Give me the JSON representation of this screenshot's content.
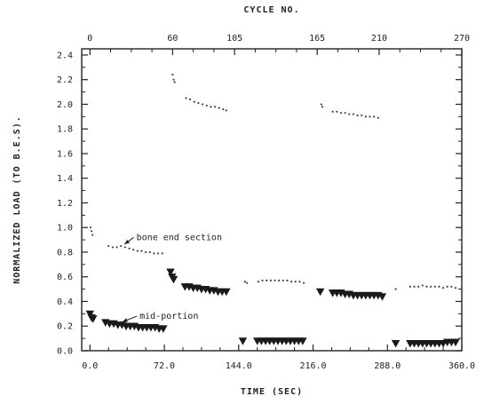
{
  "chart_data": {
    "type": "scatter",
    "title": "",
    "xlabel": "TIME (SEC)",
    "ylabel": "NORMALIZED LOAD (TO B.E.S).",
    "x2label": "CYCLE NO.",
    "xlim": [
      -8,
      360
    ],
    "ylim": [
      0,
      2.45
    ],
    "xticks": [
      0,
      72,
      144,
      216,
      288,
      360
    ],
    "xtick_labels": [
      "0.0",
      "72.0",
      "144.0",
      "216.0",
      "288.0",
      "360.0"
    ],
    "yticks": [
      0,
      0.2,
      0.4,
      0.6,
      0.8,
      1.0,
      1.2,
      1.4,
      1.6,
      1.8,
      2.0,
      2.2,
      2.4
    ],
    "ytick_labels": [
      "0.0",
      "0.2",
      "0.4",
      "0.6",
      "0.8",
      "1.0",
      "1.2",
      "1.4",
      "1.6",
      "1.8",
      "2.0",
      "2.2",
      "2.4"
    ],
    "x2ticks": [
      0,
      60,
      105,
      165,
      210,
      270
    ],
    "x2tick_labels": [
      "0",
      "60",
      "105",
      "165",
      "210",
      "270"
    ],
    "grid": false,
    "annotations": [
      {
        "text": "bone end section",
        "x": 30,
        "y": 0.85,
        "text_x": 45,
        "text_y": 0.92
      },
      {
        "text": "mid-portion",
        "x": 28,
        "y": 0.22,
        "text_x": 48,
        "text_y": 0.28
      }
    ],
    "series": [
      {
        "marker": "dot",
        "points": [
          [
            0.5,
            1.0
          ],
          [
            1.5,
            0.97
          ],
          [
            2.5,
            0.94
          ],
          [
            18,
            0.85
          ],
          [
            22,
            0.84
          ],
          [
            26,
            0.84
          ],
          [
            30,
            0.85
          ],
          [
            34,
            0.84
          ],
          [
            38,
            0.83
          ],
          [
            42,
            0.82
          ],
          [
            46,
            0.81
          ],
          [
            50,
            0.81
          ],
          [
            54,
            0.8
          ],
          [
            58,
            0.8
          ],
          [
            62,
            0.79
          ],
          [
            66,
            0.79
          ],
          [
            70,
            0.79
          ],
          [
            80,
            2.24
          ],
          [
            81,
            2.2
          ],
          [
            82,
            2.18
          ],
          [
            93,
            2.05
          ],
          [
            97,
            2.04
          ],
          [
            101,
            2.02
          ],
          [
            105,
            2.01
          ],
          [
            109,
            2.0
          ],
          [
            113,
            1.99
          ],
          [
            117,
            1.98
          ],
          [
            121,
            1.98
          ],
          [
            125,
            1.97
          ],
          [
            129,
            1.96
          ],
          [
            132,
            1.95
          ],
          [
            224,
            2.0
          ],
          [
            225,
            1.98
          ],
          [
            235,
            1.94
          ],
          [
            239,
            1.94
          ],
          [
            243,
            1.93
          ],
          [
            247,
            1.93
          ],
          [
            251,
            1.92
          ],
          [
            255,
            1.92
          ],
          [
            259,
            1.91
          ],
          [
            263,
            1.91
          ],
          [
            267,
            1.9
          ],
          [
            271,
            1.9
          ],
          [
            275,
            1.9
          ],
          [
            279,
            1.89
          ],
          [
            150,
            0.56
          ],
          [
            152,
            0.55
          ],
          [
            163,
            0.56
          ],
          [
            167,
            0.57
          ],
          [
            171,
            0.57
          ],
          [
            175,
            0.57
          ],
          [
            179,
            0.57
          ],
          [
            183,
            0.57
          ],
          [
            187,
            0.57
          ],
          [
            191,
            0.57
          ],
          [
            195,
            0.56
          ],
          [
            199,
            0.56
          ],
          [
            203,
            0.56
          ],
          [
            207,
            0.55
          ],
          [
            296,
            0.5
          ],
          [
            310,
            0.52
          ],
          [
            314,
            0.52
          ],
          [
            318,
            0.52
          ],
          [
            322,
            0.53
          ],
          [
            326,
            0.52
          ],
          [
            330,
            0.52
          ],
          [
            334,
            0.52
          ],
          [
            338,
            0.52
          ],
          [
            342,
            0.51
          ],
          [
            346,
            0.52
          ],
          [
            350,
            0.52
          ],
          [
            354,
            0.51
          ]
        ]
      },
      {
        "marker": "triangle",
        "points": [
          [
            0,
            0.3
          ],
          [
            1.5,
            0.27
          ],
          [
            3,
            0.26
          ],
          [
            15,
            0.23
          ],
          [
            19,
            0.22
          ],
          [
            23,
            0.22
          ],
          [
            27,
            0.21
          ],
          [
            31,
            0.21
          ],
          [
            35,
            0.2
          ],
          [
            39,
            0.2
          ],
          [
            43,
            0.2
          ],
          [
            47,
            0.19
          ],
          [
            51,
            0.19
          ],
          [
            55,
            0.19
          ],
          [
            59,
            0.19
          ],
          [
            63,
            0.19
          ],
          [
            67,
            0.18
          ],
          [
            71,
            0.18
          ],
          [
            78,
            0.64
          ],
          [
            79.5,
            0.6
          ],
          [
            81,
            0.58
          ],
          [
            92,
            0.52
          ],
          [
            96,
            0.52
          ],
          [
            100,
            0.51
          ],
          [
            104,
            0.51
          ],
          [
            108,
            0.5
          ],
          [
            112,
            0.5
          ],
          [
            116,
            0.49
          ],
          [
            120,
            0.49
          ],
          [
            124,
            0.48
          ],
          [
            128,
            0.48
          ],
          [
            132,
            0.48
          ],
          [
            148,
            0.08
          ],
          [
            162,
            0.08
          ],
          [
            166,
            0.08
          ],
          [
            170,
            0.08
          ],
          [
            174,
            0.08
          ],
          [
            178,
            0.08
          ],
          [
            182,
            0.08
          ],
          [
            186,
            0.08
          ],
          [
            190,
            0.08
          ],
          [
            194,
            0.08
          ],
          [
            198,
            0.08
          ],
          [
            202,
            0.08
          ],
          [
            206,
            0.08
          ],
          [
            223,
            0.48
          ],
          [
            235,
            0.47
          ],
          [
            239,
            0.47
          ],
          [
            243,
            0.47
          ],
          [
            247,
            0.46
          ],
          [
            251,
            0.46
          ],
          [
            255,
            0.45
          ],
          [
            259,
            0.45
          ],
          [
            263,
            0.45
          ],
          [
            267,
            0.45
          ],
          [
            271,
            0.45
          ],
          [
            275,
            0.45
          ],
          [
            279,
            0.45
          ],
          [
            283,
            0.44
          ],
          [
            296,
            0.06
          ],
          [
            310,
            0.06
          ],
          [
            314,
            0.06
          ],
          [
            318,
            0.06
          ],
          [
            322,
            0.06
          ],
          [
            326,
            0.06
          ],
          [
            330,
            0.06
          ],
          [
            334,
            0.06
          ],
          [
            338,
            0.06
          ],
          [
            342,
            0.06
          ],
          [
            346,
            0.07
          ],
          [
            350,
            0.07
          ],
          [
            354,
            0.07
          ]
        ]
      }
    ]
  }
}
